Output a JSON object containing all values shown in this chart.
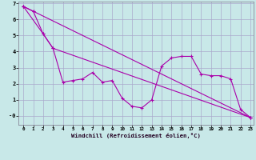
{
  "xlabel": "Windchill (Refroidissement éolien,°C)",
  "background_color": "#c8e8e8",
  "grid_color": "#aaaacc",
  "line_color": "#aa00aa",
  "xlim": [
    -0.5,
    23.3
  ],
  "ylim": [
    -0.55,
    7.1
  ],
  "xticks": [
    0,
    1,
    2,
    3,
    4,
    5,
    6,
    7,
    8,
    9,
    10,
    11,
    12,
    13,
    14,
    15,
    16,
    17,
    18,
    19,
    20,
    21,
    22,
    23
  ],
  "yticks": [
    0,
    1,
    2,
    3,
    4,
    5,
    6,
    7
  ],
  "ytick_labels": [
    "-0",
    "1",
    "2",
    "3",
    "4",
    "5",
    "6",
    "7"
  ],
  "series1_x": [
    0,
    1,
    2,
    3,
    4,
    5,
    6,
    7,
    8,
    9,
    10,
    11,
    12,
    13,
    14,
    15,
    16,
    17,
    18,
    19,
    20,
    21,
    22,
    23
  ],
  "series1_y": [
    6.8,
    6.5,
    5.1,
    4.2,
    2.1,
    2.2,
    2.3,
    2.7,
    2.1,
    2.2,
    1.1,
    0.6,
    0.5,
    1.0,
    3.1,
    3.6,
    3.7,
    3.7,
    2.6,
    2.5,
    2.5,
    2.3,
    0.4,
    -0.1
  ],
  "series2_x": [
    0,
    2,
    3,
    23
  ],
  "series2_y": [
    6.8,
    5.1,
    4.2,
    -0.1
  ],
  "series3_x": [
    0,
    1,
    23
  ],
  "series3_y": [
    6.8,
    6.5,
    -0.1
  ]
}
